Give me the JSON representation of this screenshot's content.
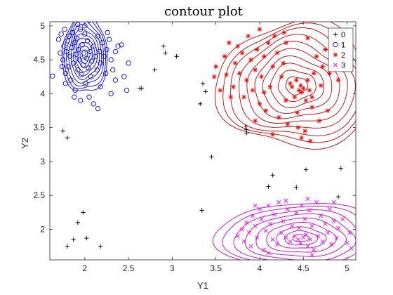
{
  "chart_data": {
    "type": "scatter",
    "title": "contour plot",
    "xlabel": "Y1",
    "ylabel": "Y2",
    "xlim": [
      1.6,
      5.1
    ],
    "ylim": [
      1.55,
      5.06
    ],
    "x_ticks": [
      2,
      2.5,
      3,
      3.5,
      4,
      4.5,
      5
    ],
    "x_tick_labels": [
      "2",
      "2.5",
      "3",
      "3.5",
      "4",
      "4.5",
      "5"
    ],
    "y_ticks": [
      2,
      2.5,
      3,
      3.5,
      4,
      4.5,
      5
    ],
    "y_tick_labels": [
      "2",
      "2.5",
      "3",
      "3.5",
      "4",
      "4.5",
      "5"
    ],
    "grid": false,
    "legend_position": "top-right",
    "series": [
      {
        "name": "0",
        "marker": "plus",
        "color": "#000000",
        "points": [
          [
            1.75,
            3.45
          ],
          [
            1.8,
            3.35
          ],
          [
            1.8,
            1.75
          ],
          [
            1.87,
            1.85
          ],
          [
            1.92,
            2.1
          ],
          [
            1.98,
            2.25
          ],
          [
            2.02,
            1.87
          ],
          [
            2.18,
            1.75
          ],
          [
            2.63,
            4.08
          ],
          [
            2.65,
            4.08
          ],
          [
            2.8,
            4.35
          ],
          [
            2.9,
            4.7
          ],
          [
            2.92,
            4.6
          ],
          [
            3.05,
            4.55
          ],
          [
            3.32,
            3.85
          ],
          [
            3.35,
            4.15
          ],
          [
            3.38,
            4.03
          ],
          [
            3.34,
            2.28
          ],
          [
            3.45,
            3.07
          ],
          [
            3.84,
            3.52
          ],
          [
            3.85,
            3.47
          ],
          [
            3.85,
            3.42
          ],
          [
            4.1,
            2.63
          ],
          [
            4.15,
            2.8
          ],
          [
            4.42,
            2.62
          ],
          [
            4.53,
            2.88
          ],
          [
            4.9,
            2.48
          ],
          [
            4.93,
            2.9
          ]
        ]
      },
      {
        "name": "1",
        "marker": "circle",
        "color": "#0000ff",
        "points": [
          [
            1.63,
            4.26
          ],
          [
            1.7,
            4.8
          ],
          [
            1.72,
            4.6
          ],
          [
            1.73,
            4.88
          ],
          [
            1.75,
            4.5
          ],
          [
            1.76,
            4.7
          ],
          [
            1.77,
            4.95
          ],
          [
            1.78,
            4.3
          ],
          [
            1.79,
            4.62
          ],
          [
            1.8,
            4.78
          ],
          [
            1.81,
            4.4
          ],
          [
            1.82,
            4.85
          ],
          [
            1.83,
            4.55
          ],
          [
            1.84,
            4.2
          ],
          [
            1.85,
            4.68
          ],
          [
            1.86,
            4.9
          ],
          [
            1.87,
            4.45
          ],
          [
            1.88,
            4.75
          ],
          [
            1.89,
            4.05
          ],
          [
            1.9,
            4.58
          ],
          [
            1.91,
            4.82
          ],
          [
            1.92,
            4.35
          ],
          [
            1.93,
            4.65
          ],
          [
            1.94,
            4.5
          ],
          [
            1.95,
            4.95
          ],
          [
            1.96,
            4.28
          ],
          [
            1.97,
            4.72
          ],
          [
            1.98,
            4.42
          ],
          [
            1.99,
            4.6
          ],
          [
            2.0,
            4.88
          ],
          [
            2.01,
            4.15
          ],
          [
            2.02,
            4.52
          ],
          [
            2.03,
            4.78
          ],
          [
            2.04,
            4.38
          ],
          [
            2.05,
            5.08
          ],
          [
            2.06,
            4.62
          ],
          [
            2.07,
            4.25
          ],
          [
            2.08,
            4.48
          ],
          [
            2.1,
            4.7
          ],
          [
            2.12,
            4.55
          ],
          [
            2.14,
            4.35
          ],
          [
            2.15,
            4.85
          ],
          [
            2.17,
            4.62
          ],
          [
            2.18,
            4.45
          ],
          [
            2.2,
            4.75
          ],
          [
            2.22,
            4.55
          ],
          [
            2.24,
            4.3
          ],
          [
            2.25,
            4.65
          ],
          [
            2.28,
            4.8
          ],
          [
            2.3,
            4.5
          ],
          [
            2.32,
            4.35
          ],
          [
            2.35,
            4.62
          ],
          [
            2.38,
            4.7
          ],
          [
            2.42,
            4.72
          ],
          [
            2.45,
            4.25
          ],
          [
            2.48,
            4.05
          ],
          [
            2.5,
            4.45
          ],
          [
            1.95,
            3.9
          ],
          [
            2.05,
            3.95
          ],
          [
            2.1,
            3.85
          ],
          [
            2.18,
            4.1
          ],
          [
            2.3,
            4.0
          ],
          [
            2.35,
            4.2
          ],
          [
            1.88,
            3.95
          ],
          [
            2.15,
            3.78
          ],
          [
            1.92,
            5.02
          ],
          [
            2.0,
            5.0
          ],
          [
            1.74,
            4.4
          ],
          [
            1.78,
            4.15
          ],
          [
            2.26,
            4.9
          ]
        ]
      },
      {
        "name": "2",
        "marker": "asterisk",
        "color": "#ff0000",
        "points": [
          [
            3.48,
            4.25
          ],
          [
            3.5,
            4.4
          ],
          [
            3.55,
            4.05
          ],
          [
            3.6,
            4.55
          ],
          [
            3.62,
            4.28
          ],
          [
            3.65,
            4.75
          ],
          [
            3.67,
            3.95
          ],
          [
            3.7,
            4.1
          ],
          [
            3.72,
            4.45
          ],
          [
            3.75,
            4.7
          ],
          [
            3.77,
            4.3
          ],
          [
            3.8,
            4.6
          ],
          [
            3.82,
            3.95
          ],
          [
            3.85,
            4.2
          ],
          [
            3.87,
            4.85
          ],
          [
            3.9,
            4.5
          ],
          [
            3.92,
            4.05
          ],
          [
            3.95,
            4.35
          ],
          [
            3.97,
            4.65
          ],
          [
            4.0,
            3.85
          ],
          [
            4.02,
            4.25
          ],
          [
            4.05,
            4.55
          ],
          [
            4.07,
            3.75
          ],
          [
            4.1,
            4.75
          ],
          [
            4.12,
            4.1
          ],
          [
            4.15,
            4.4
          ],
          [
            4.17,
            4.85
          ],
          [
            4.2,
            4.6
          ],
          [
            4.22,
            3.65
          ],
          [
            4.25,
            4.25
          ],
          [
            4.27,
            4.45
          ],
          [
            4.3,
            3.9
          ],
          [
            4.32,
            3.55
          ],
          [
            4.35,
            4.15
          ],
          [
            4.37,
            4.1
          ],
          [
            4.4,
            3.95
          ],
          [
            4.42,
            4.2
          ],
          [
            4.44,
            3.5
          ],
          [
            4.45,
            4.05
          ],
          [
            4.47,
            4.12
          ],
          [
            4.48,
            3.35
          ],
          [
            4.5,
            4.08
          ],
          [
            4.52,
            3.45
          ],
          [
            4.53,
            3.9
          ],
          [
            4.55,
            4.2
          ],
          [
            4.57,
            4.05
          ],
          [
            4.58,
            3.3
          ],
          [
            4.6,
            3.8
          ],
          [
            4.62,
            4.3
          ],
          [
            4.65,
            4.55
          ],
          [
            4.68,
            3.6
          ],
          [
            4.7,
            4.12
          ],
          [
            4.72,
            4.4
          ],
          [
            4.75,
            4.65
          ],
          [
            4.78,
            3.75
          ],
          [
            4.8,
            4.3
          ],
          [
            4.85,
            4.75
          ],
          [
            4.88,
            4.45
          ],
          [
            4.9,
            4.2
          ],
          [
            4.95,
            4.5
          ],
          [
            4.0,
            4.95
          ],
          [
            4.3,
            4.75
          ],
          [
            4.55,
            4.82
          ],
          [
            4.15,
            3.4
          ],
          [
            3.95,
            3.6
          ],
          [
            4.28,
            4.9
          ],
          [
            4.43,
            3.72
          ],
          [
            4.6,
            3.95
          ],
          [
            4.05,
            4.02
          ],
          [
            4.48,
            4.02
          ]
        ]
      },
      {
        "name": "3",
        "marker": "cross",
        "color": "#ff00ff",
        "points": [
          [
            3.75,
            1.9
          ],
          [
            3.8,
            2.0
          ],
          [
            3.82,
            1.82
          ],
          [
            3.85,
            2.1
          ],
          [
            3.88,
            1.95
          ],
          [
            3.9,
            1.75
          ],
          [
            3.92,
            2.2
          ],
          [
            3.95,
            2.05
          ],
          [
            3.97,
            1.88
          ],
          [
            4.0,
            2.3
          ],
          [
            4.02,
            2.15
          ],
          [
            4.05,
            1.7
          ],
          [
            4.07,
            1.98
          ],
          [
            4.1,
            2.35
          ],
          [
            4.12,
            2.08
          ],
          [
            4.15,
            1.85
          ],
          [
            4.17,
            2.22
          ],
          [
            4.2,
            1.78
          ],
          [
            4.22,
            2.4
          ],
          [
            4.25,
            1.95
          ],
          [
            4.27,
            2.12
          ],
          [
            4.3,
            1.88
          ],
          [
            4.32,
            2.3
          ],
          [
            4.35,
            1.82
          ],
          [
            4.37,
            2.05
          ],
          [
            4.4,
            1.9
          ],
          [
            4.42,
            2.25
          ],
          [
            4.44,
            1.85
          ],
          [
            4.45,
            2.02
          ],
          [
            4.47,
            1.8
          ],
          [
            4.48,
            2.35
          ],
          [
            4.5,
            1.88
          ],
          [
            4.52,
            2.15
          ],
          [
            4.53,
            1.92
          ],
          [
            4.55,
            1.75
          ],
          [
            4.57,
            2.28
          ],
          [
            4.58,
            1.85
          ],
          [
            4.6,
            2.05
          ],
          [
            4.62,
            1.7
          ],
          [
            4.65,
            2.4
          ],
          [
            4.67,
            1.9
          ],
          [
            4.7,
            2.2
          ],
          [
            4.72,
            1.82
          ],
          [
            4.75,
            2.08
          ],
          [
            4.78,
            1.95
          ],
          [
            4.8,
            2.3
          ],
          [
            4.82,
            1.78
          ],
          [
            4.85,
            2.12
          ],
          [
            4.88,
            1.88
          ],
          [
            4.9,
            2.02
          ],
          [
            4.95,
            2.15
          ],
          [
            5.0,
            1.8
          ],
          [
            5.03,
            1.95
          ],
          [
            5.05,
            1.72
          ],
          [
            4.3,
            2.42
          ],
          [
            4.55,
            2.45
          ],
          [
            4.85,
            2.4
          ],
          [
            4.1,
            1.65
          ],
          [
            4.6,
            1.62
          ],
          [
            3.95,
            2.35
          ]
        ]
      }
    ],
    "contours": [
      {
        "series": "1",
        "color": "#0000ff",
        "center": [
          2.0,
          4.58
        ],
        "radius": [
          0.26,
          0.58
        ],
        "levels": [
          0.12,
          0.22,
          0.32,
          0.42,
          0.52,
          0.62,
          0.72,
          0.82,
          0.92,
          1.0
        ],
        "wobble": 0.06
      },
      {
        "series": "2",
        "color": "#cc0000",
        "center": [
          4.42,
          4.12
        ],
        "radius": [
          0.9,
          0.92
        ],
        "levels": [
          0.14,
          0.24,
          0.34,
          0.44,
          0.54,
          0.64,
          0.74,
          0.84,
          0.92,
          1.0
        ],
        "wobble": 0.07
      },
      {
        "series": "3",
        "color": "#cc00cc",
        "center": [
          4.47,
          1.87
        ],
        "radius": [
          0.95,
          0.52
        ],
        "levels": [
          0.1,
          0.2,
          0.3,
          0.42,
          0.54,
          0.66,
          0.78,
          0.9,
          1.0
        ],
        "wobble": 0.05
      }
    ]
  }
}
